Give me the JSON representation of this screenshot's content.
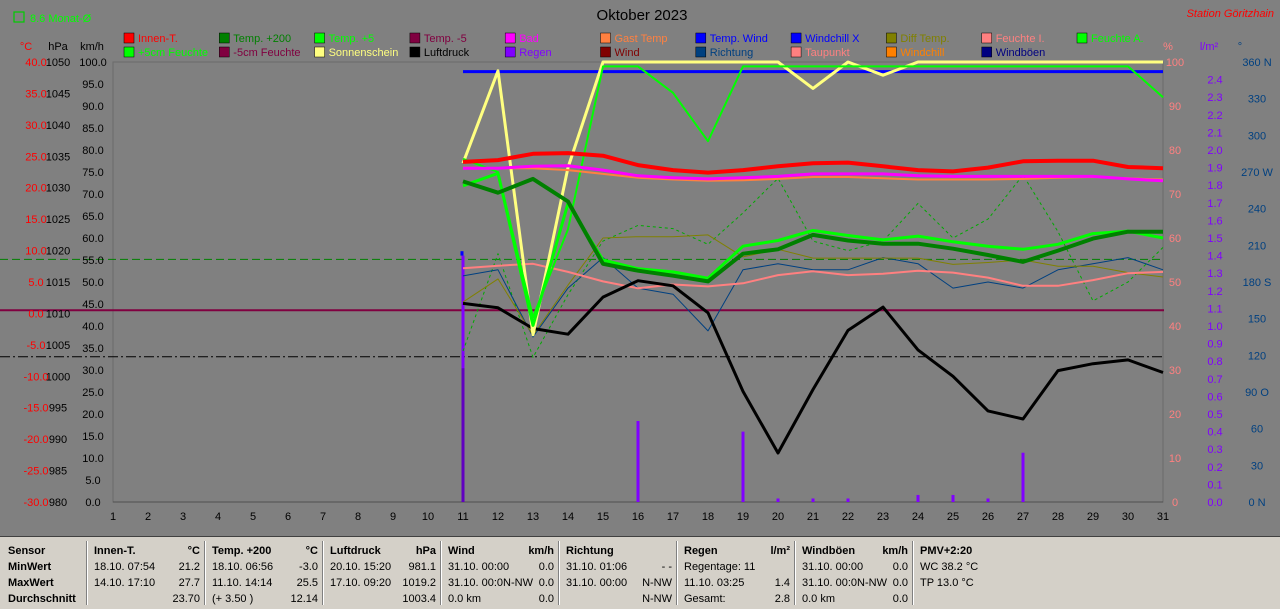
{
  "header": {
    "title": "Oktober 2023",
    "station": "Station Göritzhain",
    "month_avg_label": "8.6 Monat-Ø"
  },
  "legend": [
    {
      "label": "Innen-T.",
      "color": "#ff0000"
    },
    {
      "label": "Temp. +200",
      "color": "#008000"
    },
    {
      "label": "Temp. +5",
      "color": "#00ff00"
    },
    {
      "label": "Temp. -5",
      "color": "#800040"
    },
    {
      "label": "Bad",
      "color": "#ff00ff"
    },
    {
      "label": "Gast Temp",
      "color": "#ff8040"
    },
    {
      "label": "Temp. Wind",
      "color": "#0000ff"
    },
    {
      "label": "Windchill X",
      "color": "#0000ff"
    },
    {
      "label": "Diff Temp.",
      "color": "#808000"
    },
    {
      "label": "Feuchte I.",
      "color": "#ff8080"
    },
    {
      "label": "Feuchte A.",
      "color": "#00ff00"
    },
    {
      "label": "+5cm Feuchte",
      "color": "#00ff00"
    },
    {
      "label": "-5cm Feuchte",
      "color": "#800040"
    },
    {
      "label": "Sonnenschein",
      "color": "#ffff80"
    },
    {
      "label": "Luftdruck",
      "color": "#000000"
    },
    {
      "label": "Regen",
      "color": "#8000ff"
    },
    {
      "label": "Wind",
      "color": "#800000"
    },
    {
      "label": "Richtung",
      "color": "#004080"
    },
    {
      "label": "Taupunkt",
      "color": "#ff8080"
    },
    {
      "label": "Windchill",
      "color": "#ff8000"
    },
    {
      "label": "Windböen",
      "color": "#000080"
    }
  ],
  "chart_data": {
    "type": "line",
    "title": "Oktober 2023",
    "x": [
      1,
      2,
      3,
      4,
      5,
      6,
      7,
      8,
      9,
      10,
      11,
      12,
      13,
      14,
      15,
      16,
      17,
      18,
      19,
      20,
      21,
      22,
      23,
      24,
      25,
      26,
      27,
      28,
      29,
      30,
      31
    ],
    "axes": {
      "temp_c": {
        "unit": "°C",
        "range": [
          -30,
          40
        ],
        "ticks": [
          "40.0",
          "35.0",
          "30.0",
          "25.0",
          "20.0",
          "15.0",
          "10.0",
          "5.0",
          "0.0",
          "-5.0",
          "-10.0",
          "-15.0",
          "-20.0",
          "-25.0",
          "-30.0"
        ]
      },
      "pressure_hpa": {
        "unit": "hPa",
        "range": [
          980,
          1050
        ],
        "ticks": [
          "1050",
          "1045",
          "1040",
          "1035",
          "1030",
          "1025",
          "1020",
          "1015",
          "1010",
          "1005",
          "1000",
          "995",
          "990",
          "985",
          "980"
        ]
      },
      "wind_kmh": {
        "unit": "km/h",
        "range": [
          0,
          100
        ],
        "ticks": [
          "100.0",
          "95.0",
          "90.0",
          "85.0",
          "80.0",
          "75.0",
          "70.0",
          "65.0",
          "60.0",
          "55.0",
          "50.0",
          "45.0",
          "40.0",
          "35.0",
          "30.0",
          "25.0",
          "20.0",
          "15.0",
          "10.0",
          "5.0",
          "0.0"
        ]
      },
      "humidity_pct": {
        "unit": "%",
        "range": [
          0,
          100
        ],
        "ticks": [
          "100",
          "90",
          "80",
          "70",
          "60",
          "50",
          "40",
          "30",
          "20",
          "10",
          "0"
        ]
      },
      "rain_lm2": {
        "unit": "l/m²",
        "range": [
          0,
          2.5
        ],
        "ticks": [
          "2.4",
          "2.3",
          "2.2",
          "2.1",
          "2.0",
          "1.9",
          "1.8",
          "1.7",
          "1.6",
          "1.5",
          "1.4",
          "1.3",
          "1.2",
          "1.1",
          "1.0",
          "0.9",
          "0.8",
          "0.7",
          "0.6",
          "0.5",
          "0.4",
          "0.3",
          "0.2",
          "0.1",
          "0.0"
        ]
      },
      "direction_deg": {
        "unit": "°",
        "range": [
          0,
          360
        ],
        "ticks": [
          "360 N",
          "330",
          "300",
          "270 W",
          "240",
          "210",
          "180 S",
          "150",
          "120",
          "90 O",
          "60",
          "30",
          "0 N"
        ]
      }
    },
    "reference_lines": [
      {
        "name": "8.6 Monat-Ø",
        "axis": "temp_c",
        "value": 8.6,
        "color": "#008000",
        "style": "dashed"
      },
      {
        "axis": "temp_c",
        "value": 0.5,
        "color": "#800040",
        "style": "solid"
      },
      {
        "axis": "wind_kmh",
        "value": 33,
        "color": "#000000",
        "style": "dashdot"
      },
      {
        "axis": "wind_kmh",
        "value": 97.8,
        "color": "#0000ff",
        "style": "solid",
        "from": 11
      }
    ],
    "series": [
      {
        "name": "Innen-T.",
        "axis": "temp_c",
        "color": "#ff0000",
        "width": 4,
        "x": [
          11,
          12,
          13,
          14,
          15,
          16,
          17,
          18,
          19,
          20,
          21,
          22,
          23,
          24,
          25,
          26,
          27,
          28,
          29,
          30,
          31
        ],
        "y": [
          24.1,
          24.4,
          25.4,
          25.5,
          25.1,
          23.6,
          22.8,
          22.4,
          22.8,
          23.4,
          23.9,
          24.0,
          23.4,
          22.8,
          22.6,
          23.2,
          24.2,
          24.3,
          24.3,
          23.3,
          23.1
        ]
      },
      {
        "name": "Bad",
        "axis": "temp_c",
        "color": "#ff00ff",
        "width": 3,
        "x": [
          11,
          12,
          13,
          14,
          15,
          16,
          17,
          18,
          19,
          20,
          21,
          22,
          23,
          24,
          25,
          26,
          27,
          28,
          29,
          30,
          31
        ],
        "y": [
          23.1,
          23.1,
          23.4,
          23.5,
          22.8,
          21.9,
          21.6,
          21.4,
          21.6,
          21.8,
          22.2,
          22.2,
          22.2,
          21.9,
          21.8,
          21.8,
          21.8,
          21.8,
          21.8,
          21.4,
          21.1
        ]
      },
      {
        "name": "Gast Temp",
        "axis": "temp_c",
        "color": "#ff8040",
        "width": 2,
        "x": [
          11,
          12,
          13,
          14,
          15,
          16,
          17,
          18,
          19,
          20,
          21,
          22,
          23,
          24,
          25,
          26,
          27,
          28,
          29,
          30,
          31
        ],
        "y": [
          23.2,
          23.1,
          23.1,
          22.8,
          22.2,
          21.6,
          21.3,
          21.1,
          21.2,
          21.4,
          21.7,
          21.7,
          21.5,
          21.3,
          21.3,
          21.3,
          21.4,
          21.6,
          21.7,
          21.5,
          21.3
        ]
      },
      {
        "name": "Temp. +200",
        "axis": "temp_c",
        "color": "#008000",
        "width": 4,
        "x": [
          11,
          12,
          13,
          14,
          15,
          16,
          17,
          18,
          19,
          20,
          21,
          22,
          23,
          24,
          25,
          26,
          27,
          28,
          29,
          30,
          31
        ],
        "y": [
          21.0,
          19.2,
          21.4,
          17.8,
          7.9,
          6.8,
          6.0,
          5.1,
          9.5,
          10.2,
          12.5,
          11.6,
          11.1,
          11.1,
          10.3,
          9.3,
          8.2,
          10.0,
          11.9,
          13.0,
          13.0
        ]
      },
      {
        "name": "Temp. +5",
        "axis": "temp_c",
        "color": "#00ff00",
        "width": 3,
        "x": [
          11,
          12,
          13,
          14,
          15,
          16,
          17,
          18,
          19,
          20,
          21,
          22,
          23,
          24,
          25,
          26,
          27,
          28,
          29,
          30,
          31
        ],
        "y": [
          20.3,
          22.3,
          -1.9,
          17.5,
          8.5,
          7.1,
          6.6,
          5.6,
          10.7,
          11.6,
          13.2,
          12.4,
          11.7,
          12.3,
          11.4,
          10.7,
          10.2,
          11.0,
          12.7,
          13.1,
          12.0
        ]
      },
      {
        "name": "Feuchte A.",
        "axis": "humidity_pct",
        "color": "#00ff00",
        "width": 2,
        "x": [
          11,
          12,
          13,
          14,
          15,
          16,
          17,
          18,
          19,
          20,
          21,
          22,
          23,
          24,
          25,
          26,
          27,
          28,
          29,
          30,
          31
        ],
        "y": [
          78,
          75,
          42,
          62,
          99,
          99,
          93,
          82,
          99,
          99,
          99,
          99,
          99,
          99,
          99,
          99,
          99,
          99,
          99,
          99,
          92
        ]
      },
      {
        "name": "Sonnenschein",
        "axis": "humidity_pct",
        "color": "#ffff80",
        "width": 3,
        "x": [
          11,
          12,
          13,
          14,
          15,
          16,
          17,
          18,
          19,
          20,
          21,
          22,
          23,
          24,
          25,
          26,
          27,
          28,
          29,
          30,
          31
        ],
        "y": [
          77,
          98,
          38,
          76,
          100,
          100,
          100,
          100,
          100,
          100,
          94,
          100,
          97,
          100,
          100,
          100,
          100,
          100,
          100,
          100,
          100
        ]
      },
      {
        "name": "Luftdruck",
        "axis": "pressure_hpa",
        "color": "#000000",
        "width": 3,
        "x": [
          11,
          12,
          13,
          14,
          15,
          16,
          17,
          18,
          19,
          20,
          21,
          22,
          23,
          24,
          25,
          26,
          27,
          28,
          29,
          30,
          31
        ],
        "y": [
          1011.6,
          1010.9,
          1007.6,
          1006.7,
          1012.6,
          1015.2,
          1014.4,
          1010.1,
          997.6,
          987.8,
          997.9,
          1007.3,
          1011.0,
          1004.2,
          1000.0,
          994.5,
          993.2,
          1000.9,
          1002.0,
          1002.6,
          1000.6
        ]
      },
      {
        "name": "Taupunkt",
        "axis": "temp_c",
        "color": "#ff8080",
        "width": 2,
        "x": [
          11,
          12,
          13,
          14,
          15,
          16,
          17,
          18,
          19,
          20,
          21,
          22,
          23,
          24,
          25,
          26,
          27,
          28,
          29,
          30,
          31
        ],
        "y": [
          7.2,
          7.6,
          7.9,
          6.6,
          5.1,
          4.0,
          4.6,
          4.3,
          4.8,
          6.1,
          6.7,
          6.1,
          6.3,
          6.8,
          6.5,
          5.7,
          4.4,
          4.4,
          5.3,
          6.4,
          6.6
        ]
      },
      {
        "name": "Diff Temp.",
        "axis": "temp_c",
        "color": "#808000",
        "width": 1,
        "x": [
          11,
          12,
          13,
          14,
          15,
          16,
          17,
          18,
          19,
          20,
          21,
          22,
          23,
          24,
          25,
          26,
          27,
          28,
          29,
          30,
          31
        ],
        "y": [
          1.8,
          5.5,
          -3.5,
          4.5,
          12.0,
          12.2,
          12.2,
          12.5,
          9.0,
          10.2,
          8.8,
          8.8,
          8.8,
          8.8,
          7.8,
          8.1,
          8.5,
          7.5,
          7.5,
          6.5,
          5.8
        ]
      },
      {
        "name": "Richtung",
        "axis": "direction_deg",
        "color": "#004080",
        "width": 1,
        "x": [
          11,
          12,
          13,
          14,
          15,
          16,
          17,
          18,
          19,
          20,
          21,
          22,
          23,
          24,
          25,
          26,
          27,
          28,
          29,
          30,
          31
        ],
        "y": [
          185,
          190,
          135,
          175,
          200,
          175,
          170,
          140,
          190,
          195,
          190,
          190,
          200,
          195,
          175,
          180,
          175,
          190,
          195,
          200,
          190
        ]
      },
      {
        "name": "Feuchte I.",
        "axis": "temp_c",
        "color": "#00aa00",
        "width": 1,
        "dashed": true,
        "x": [
          11,
          12,
          13,
          14,
          15,
          16,
          17,
          18,
          19,
          20,
          21,
          22,
          23,
          24,
          25,
          26,
          27,
          28,
          29,
          30,
          31
        ],
        "y": [
          -6.0,
          9.5,
          -7.0,
          3.0,
          11.5,
          14.0,
          13.5,
          11.0,
          16.0,
          21.5,
          11.5,
          10.0,
          11.5,
          17.5,
          12.0,
          15.0,
          22.0,
          13.0,
          2.0,
          5.0,
          10.5
        ]
      }
    ],
    "rain_bars": {
      "name": "Regen",
      "axis": "rain_lm2",
      "color": "#8000ff",
      "x": [
        11,
        16,
        19,
        20,
        21,
        22,
        24,
        25,
        26,
        27
      ],
      "values": [
        1.4,
        0.46,
        0.4,
        0.02,
        0.02,
        0.02,
        0.04,
        0.04,
        0.02,
        0.28
      ]
    },
    "rain_bar_day11_dark": 0.76,
    "windchill_marker": {
      "axis": "wind_kmh",
      "x": 11,
      "values": [
        56.0,
        57.0
      ]
    }
  },
  "stats": {
    "row_labels": [
      "Sensor",
      "MinWert",
      "MaxWert",
      "Durchschnitt"
    ],
    "panels": [
      {
        "name": "Innen-T.",
        "unit": "°C",
        "min_time": "18.10.  07:54",
        "min_val": "21.2",
        "max_time": "14.10.  17:10",
        "max_val": "27.7",
        "avg_left": "",
        "avg_val": "23.70"
      },
      {
        "name": "Temp. +200",
        "unit": "°C",
        "min_time": "18.10.  06:56",
        "min_val": "-3.0",
        "max_time": "11.10.  14:14",
        "max_val": "25.5",
        "avg_left": "(+ 3.50 )",
        "avg_val": "12.14"
      },
      {
        "name": "Luftdruck",
        "unit": "hPa",
        "min_time": "20.10.  15:20",
        "min_val": "981.1",
        "max_time": "17.10.  09:20",
        "max_val": "1019.2",
        "avg_left": "",
        "avg_val": "1003.4"
      },
      {
        "name": "Wind",
        "unit": "km/h",
        "min_time": "31.10.  00:00",
        "min_val": "0.0",
        "max_time": "31.10.  00:0N-NW",
        "max_val": "0.0",
        "avg_left": "0.0 km",
        "avg_val": "0.0"
      },
      {
        "name": "Richtung",
        "unit": "",
        "min_time": "31.10.  01:06",
        "min_val": "- -",
        "max_time": "31.10.  00:00",
        "max_val": "N-NW",
        "avg_left": "",
        "avg_val": "N-NW"
      },
      {
        "name": "Regen",
        "unit": "l/m²",
        "min_time": "Regentage: 11",
        "min_val": "",
        "max_time": "11.10.  03:25",
        "max_val": "1.4",
        "avg_left": "Gesamt:",
        "avg_val": "2.8"
      },
      {
        "name": "Windböen",
        "unit": "km/h",
        "min_time": "31.10.  00:00",
        "min_val": "0.0",
        "max_time": "31.10.  00:0N-NW",
        "max_val": "0.0",
        "avg_left": "0.0 km",
        "avg_val": "0.0"
      },
      {
        "name": "PMV+2:20",
        "unit": "",
        "min_time": "WC 38.2 °C",
        "min_val": "",
        "max_time": "TP 13.0 °C",
        "max_val": "",
        "avg_left": "",
        "avg_val": ""
      }
    ]
  }
}
